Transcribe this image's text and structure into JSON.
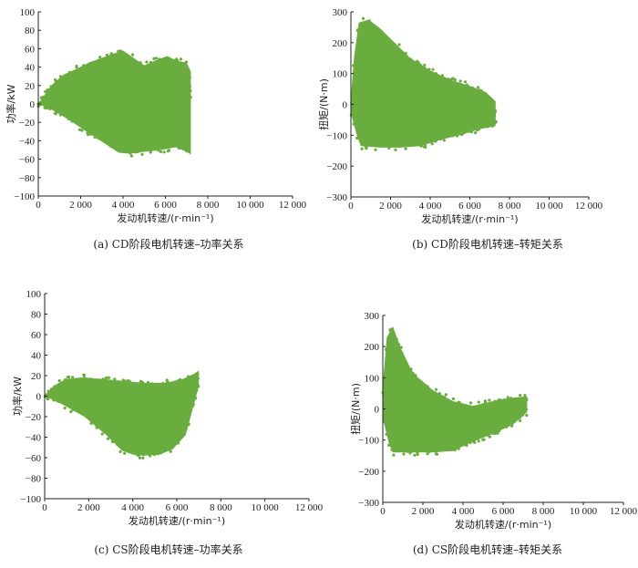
{
  "chart_data": [
    {
      "type": "scatter",
      "caption": "(a) CD阶段电机转速–功率关系",
      "xlabel": "发动机转速/(r·min⁻¹)",
      "ylabel": "功率/kW",
      "xlim": [
        0,
        12000
      ],
      "ylim": [
        -100,
        100
      ],
      "xticks": [
        0,
        2000,
        4000,
        6000,
        8000,
        10000,
        12000
      ],
      "yticks": [
        -100,
        -80,
        -60,
        -40,
        -20,
        0,
        20,
        40,
        60,
        80,
        100
      ],
      "xtick_labels": [
        "0",
        "2 000",
        "4 000",
        "6 000",
        "8 000",
        "10 000",
        "12 000"
      ],
      "ytick_labels": [
        "−100",
        "−80",
        "−60",
        "−40",
        "−20",
        "0",
        "20",
        "40",
        "60",
        "80",
        "100"
      ],
      "color": "#6aad3f",
      "upper_envelope": [
        [
          0,
          0
        ],
        [
          300,
          10
        ],
        [
          700,
          22
        ],
        [
          1200,
          32
        ],
        [
          1800,
          38
        ],
        [
          2400,
          45
        ],
        [
          3000,
          50
        ],
        [
          3600,
          55
        ],
        [
          4000,
          58
        ],
        [
          4500,
          50
        ],
        [
          5000,
          42
        ],
        [
          5600,
          48
        ],
        [
          6100,
          52
        ],
        [
          6500,
          47
        ],
        [
          7000,
          45
        ],
        [
          7200,
          35
        ]
      ],
      "lower_envelope": [
        [
          0,
          0
        ],
        [
          700,
          -7
        ],
        [
          1500,
          -18
        ],
        [
          2400,
          -32
        ],
        [
          3200,
          -44
        ],
        [
          3800,
          -53
        ],
        [
          4300,
          -54
        ],
        [
          5000,
          -52
        ],
        [
          5800,
          -50
        ],
        [
          6500,
          -47
        ],
        [
          7000,
          -52
        ],
        [
          7200,
          -55
        ]
      ]
    },
    {
      "type": "scatter",
      "caption": "(b) CD阶段电机转速–转矩关系",
      "xlabel": "发动机转速/(r·min⁻¹)",
      "ylabel": "扭矩/(N·m)",
      "xlim": [
        0,
        12000
      ],
      "ylim": [
        -300,
        300
      ],
      "xticks": [
        0,
        2000,
        4000,
        6000,
        8000,
        10000,
        12000
      ],
      "yticks": [
        -300,
        -200,
        -100,
        0,
        100,
        200,
        300
      ],
      "xtick_labels": [
        "0",
        "2 000",
        "4 000",
        "6 000",
        "8 000",
        "10 000",
        "12 000"
      ],
      "ytick_labels": [
        "−300",
        "−200",
        "−100",
        "0",
        "100",
        "200",
        "300"
      ],
      "color": "#6aad3f",
      "upper_envelope": [
        [
          0,
          20
        ],
        [
          150,
          150
        ],
        [
          400,
          265
        ],
        [
          900,
          275
        ],
        [
          1500,
          245
        ],
        [
          2200,
          200
        ],
        [
          3000,
          150
        ],
        [
          4000,
          110
        ],
        [
          5000,
          80
        ],
        [
          6000,
          60
        ],
        [
          6800,
          40
        ],
        [
          7300,
          10
        ]
      ],
      "lower_envelope": [
        [
          0,
          -30
        ],
        [
          300,
          -100
        ],
        [
          500,
          -135
        ],
        [
          1500,
          -140
        ],
        [
          2500,
          -140
        ],
        [
          3500,
          -135
        ],
        [
          4500,
          -115
        ],
        [
          5500,
          -100
        ],
        [
          6500,
          -80
        ],
        [
          7300,
          -70
        ]
      ]
    },
    {
      "type": "scatter",
      "caption": "(c) CS阶段电机转速–功率关系",
      "xlabel": "发动机转速/(r·min⁻¹)",
      "ylabel": "功率/kW",
      "xlim": [
        0,
        12000
      ],
      "ylim": [
        -100,
        100
      ],
      "xticks": [
        0,
        2000,
        4000,
        6000,
        8000,
        10000,
        12000
      ],
      "yticks": [
        -100,
        -80,
        -60,
        -40,
        -20,
        0,
        20,
        40,
        60,
        80,
        100
      ],
      "xtick_labels": [
        "0",
        "2 000",
        "4 000",
        "6 000",
        "8 000",
        "10 000",
        "12 000"
      ],
      "ytick_labels": [
        "−100",
        "−80",
        "−60",
        "−40",
        "−20",
        "0",
        "20",
        "40",
        "60",
        "80",
        "100"
      ],
      "color": "#6aad3f",
      "upper_envelope": [
        [
          0,
          0
        ],
        [
          400,
          10
        ],
        [
          900,
          16
        ],
        [
          1500,
          18
        ],
        [
          2500,
          17
        ],
        [
          3500,
          15
        ],
        [
          4500,
          13
        ],
        [
          5500,
          13
        ],
        [
          6300,
          17
        ],
        [
          6800,
          22
        ],
        [
          7000,
          25
        ]
      ],
      "lower_envelope": [
        [
          0,
          0
        ],
        [
          800,
          -8
        ],
        [
          1800,
          -20
        ],
        [
          2800,
          -38
        ],
        [
          3500,
          -53
        ],
        [
          4000,
          -57
        ],
        [
          4500,
          -58
        ],
        [
          5200,
          -57
        ],
        [
          5800,
          -52
        ],
        [
          6400,
          -38
        ],
        [
          7000,
          10
        ]
      ]
    },
    {
      "type": "scatter",
      "caption": "(d) CS阶段电机转速–转矩关系",
      "xlabel": "发动机转速/(r·min⁻¹)",
      "ylabel": "扭矩/(N·m)",
      "xlim": [
        0,
        12000
      ],
      "ylim": [
        -300,
        300
      ],
      "xticks": [
        0,
        2000,
        4000,
        6000,
        8000,
        10000,
        12000
      ],
      "yticks": [
        -300,
        -200,
        -100,
        0,
        100,
        200,
        300
      ],
      "xtick_labels": [
        "0",
        "2 000",
        "4 000",
        "6 000",
        "8 000",
        "10 000",
        "12 000"
      ],
      "ytick_labels": [
        "−300",
        "−200",
        "−100",
        "0",
        "100",
        "200",
        "300"
      ],
      "color": "#6aad3f",
      "upper_envelope": [
        [
          0,
          80
        ],
        [
          200,
          230
        ],
        [
          500,
          265
        ],
        [
          900,
          195
        ],
        [
          1500,
          115
        ],
        [
          2500,
          60
        ],
        [
          3500,
          25
        ],
        [
          4500,
          10
        ],
        [
          5500,
          25
        ],
        [
          6300,
          35
        ],
        [
          7200,
          40
        ]
      ],
      "lower_envelope": [
        [
          0,
          -30
        ],
        [
          300,
          -110
        ],
        [
          500,
          -140
        ],
        [
          1500,
          -140
        ],
        [
          2500,
          -140
        ],
        [
          3500,
          -135
        ],
        [
          4500,
          -105
        ],
        [
          5500,
          -80
        ],
        [
          6500,
          -50
        ],
        [
          7200,
          -10
        ]
      ]
    }
  ]
}
